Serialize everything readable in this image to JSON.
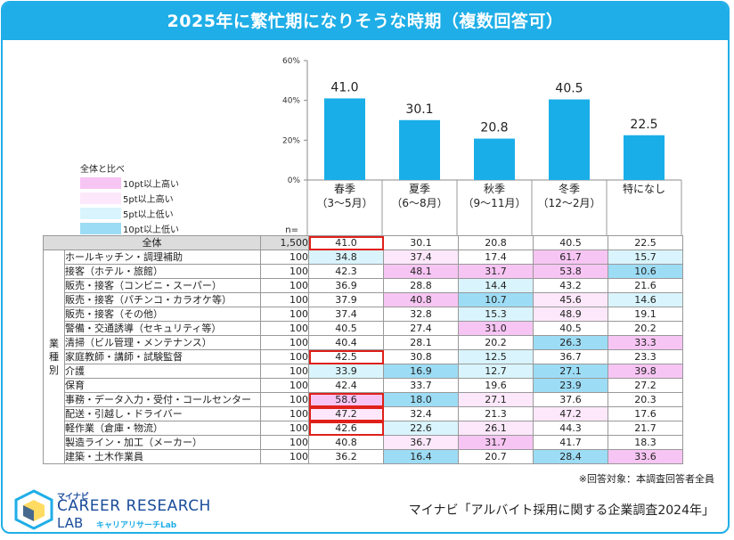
{
  "title": "2025年に繁忙期になりそうな時期（複数回答可）",
  "legend": {
    "title": "全体と比べ",
    "items": [
      {
        "label": "10pt以上高い",
        "color": "#f7c5f3"
      },
      {
        "label": "5pt以上高い",
        "color": "#fce8fa"
      },
      {
        "label": "5pt以上低い",
        "color": "#d9f4fc"
      },
      {
        "label": "10pt以上低い",
        "color": "#9ddcf5"
      }
    ]
  },
  "n_label": "n=",
  "group_label": "業種別",
  "chart_data": {
    "type": "bar",
    "categories": [
      "春季（3～5月）",
      "夏季（6～8月）",
      "秋季（9～11月）",
      "冬季（12～2月）",
      "特になし"
    ],
    "category_lines": [
      [
        "春季",
        "（3～5月）"
      ],
      [
        "夏季",
        "（6～8月）"
      ],
      [
        "秋季",
        "（9～11月）"
      ],
      [
        "冬季",
        "（12～2月）"
      ],
      [
        "特になし",
        ""
      ]
    ],
    "values": [
      41.0,
      30.1,
      20.8,
      40.5,
      22.5
    ],
    "value_labels": [
      "41.0",
      "30.1",
      "20.8",
      "40.5",
      "22.5"
    ],
    "ylim": [
      0,
      60
    ],
    "yticks": [
      "0%",
      "20%",
      "40%",
      "60%"
    ],
    "bar_color": "#1aaee8",
    "table": {
      "total": {
        "label": "全体",
        "n": "1,500",
        "values": [
          "41.0",
          "30.1",
          "20.8",
          "40.5",
          "22.5"
        ]
      },
      "rows": [
        {
          "label": "ホールキッチン・調理補助",
          "n": "100",
          "values": [
            "34.8",
            "37.4",
            "17.4",
            "61.7",
            "15.7"
          ]
        },
        {
          "label": "接客（ホテル・旅館）",
          "n": "100",
          "values": [
            "42.3",
            "48.1",
            "31.7",
            "53.8",
            "10.6"
          ]
        },
        {
          "label": "販売・接客（コンビニ・スーパー）",
          "n": "100",
          "values": [
            "36.9",
            "28.8",
            "14.4",
            "43.2",
            "21.6"
          ]
        },
        {
          "label": "販売・接客（パチンコ・カラオケ等）",
          "n": "100",
          "values": [
            "37.9",
            "40.8",
            "10.7",
            "45.6",
            "14.6"
          ]
        },
        {
          "label": "販売・接客（その他）",
          "n": "100",
          "values": [
            "37.4",
            "32.8",
            "15.3",
            "48.9",
            "19.1"
          ]
        },
        {
          "label": "警備・交通誘導（セキュリティ等）",
          "n": "100",
          "values": [
            "40.5",
            "27.4",
            "31.0",
            "40.5",
            "20.2"
          ]
        },
        {
          "label": "清掃（ビル管理・メンテナンス）",
          "n": "100",
          "values": [
            "40.4",
            "28.1",
            "20.2",
            "26.3",
            "33.3"
          ]
        },
        {
          "label": "家庭教師・講師・試験監督",
          "n": "100",
          "values": [
            "42.5",
            "30.8",
            "12.5",
            "36.7",
            "23.3"
          ]
        },
        {
          "label": "介護",
          "n": "100",
          "values": [
            "33.9",
            "16.9",
            "12.7",
            "27.1",
            "39.8"
          ]
        },
        {
          "label": "保育",
          "n": "100",
          "values": [
            "42.4",
            "33.7",
            "19.6",
            "23.9",
            "27.2"
          ]
        },
        {
          "label": "事務・データ入力・受付・コールセンター",
          "n": "100",
          "values": [
            "58.6",
            "18.0",
            "27.1",
            "37.6",
            "20.3"
          ]
        },
        {
          "label": "配送・引越し・ドライバー",
          "n": "100",
          "values": [
            "47.2",
            "32.4",
            "21.3",
            "47.2",
            "17.6"
          ]
        },
        {
          "label": "軽作業（倉庫・物流）",
          "n": "100",
          "values": [
            "42.6",
            "22.6",
            "26.1",
            "44.3",
            "21.7"
          ]
        },
        {
          "label": "製造ライン・加工（メーカー）",
          "n": "100",
          "values": [
            "40.8",
            "36.7",
            "31.7",
            "41.7",
            "18.3"
          ]
        },
        {
          "label": "建築・土木作業員",
          "n": "100",
          "values": [
            "36.2",
            "16.4",
            "20.7",
            "28.4",
            "33.6"
          ]
        }
      ]
    },
    "highlight_color": "#e0201a"
  },
  "footnote": "※回答対象：本調査回答者全員",
  "source": "マイナビ「アルバイト採用に関する企業調査2024年」",
  "logo": {
    "top": "マイナビ",
    "main": "CAREER RESEARCH",
    "lab": "LAB",
    "sub": "キャリアリサーチLab"
  }
}
